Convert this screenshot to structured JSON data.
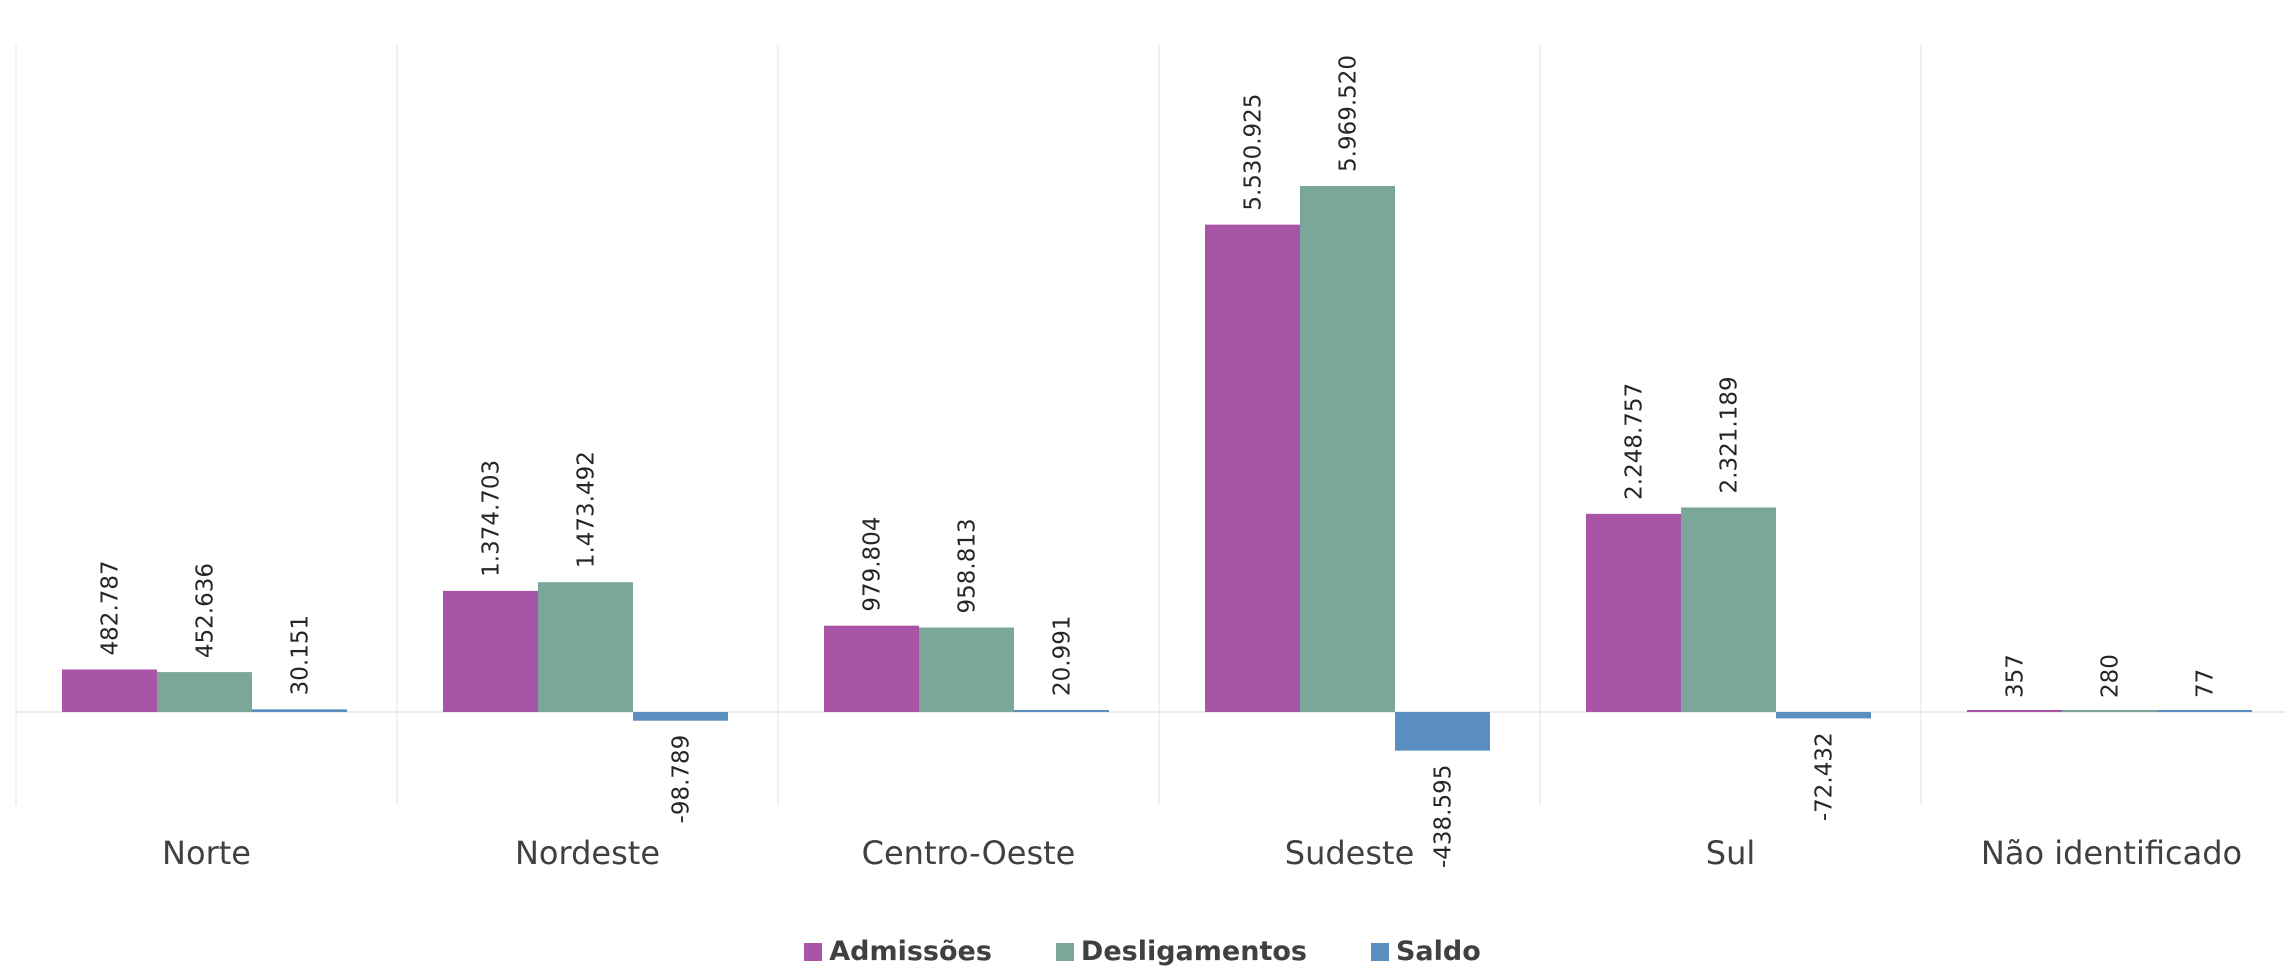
{
  "chart_data": {
    "type": "bar",
    "categories": [
      "Norte",
      "Nordeste",
      "Centro-Oeste",
      "Sudeste",
      "Sul",
      "Não identificado"
    ],
    "series": [
      {
        "name": "Admissões",
        "color": "#A855A8",
        "values": [
          482787,
          1374703,
          979804,
          5530925,
          2248757,
          357
        ],
        "labels": [
          "482.787",
          "1.374.703",
          "979.804",
          "5.530.925",
          "2.248.757",
          "357"
        ]
      },
      {
        "name": "Desligamentos",
        "color": "#7BA69A",
        "values": [
          452636,
          1473492,
          958813,
          5969520,
          2321189,
          280
        ],
        "labels": [
          "452.636",
          "1.473.492",
          "958.813",
          "5.969.520",
          "2.321.189",
          "280"
        ]
      },
      {
        "name": "Saldo",
        "color": "#5A8EC0",
        "values": [
          30151,
          -98789,
          20991,
          -438595,
          -72432,
          77
        ],
        "labels": [
          "30.151",
          "-98.789",
          "20.991",
          "-438.595",
          "-72.432",
          "77"
        ]
      }
    ],
    "ylim": [
      -1000000,
      7000000
    ],
    "grid": "vertical category separators",
    "legend": "bottom-center"
  }
}
